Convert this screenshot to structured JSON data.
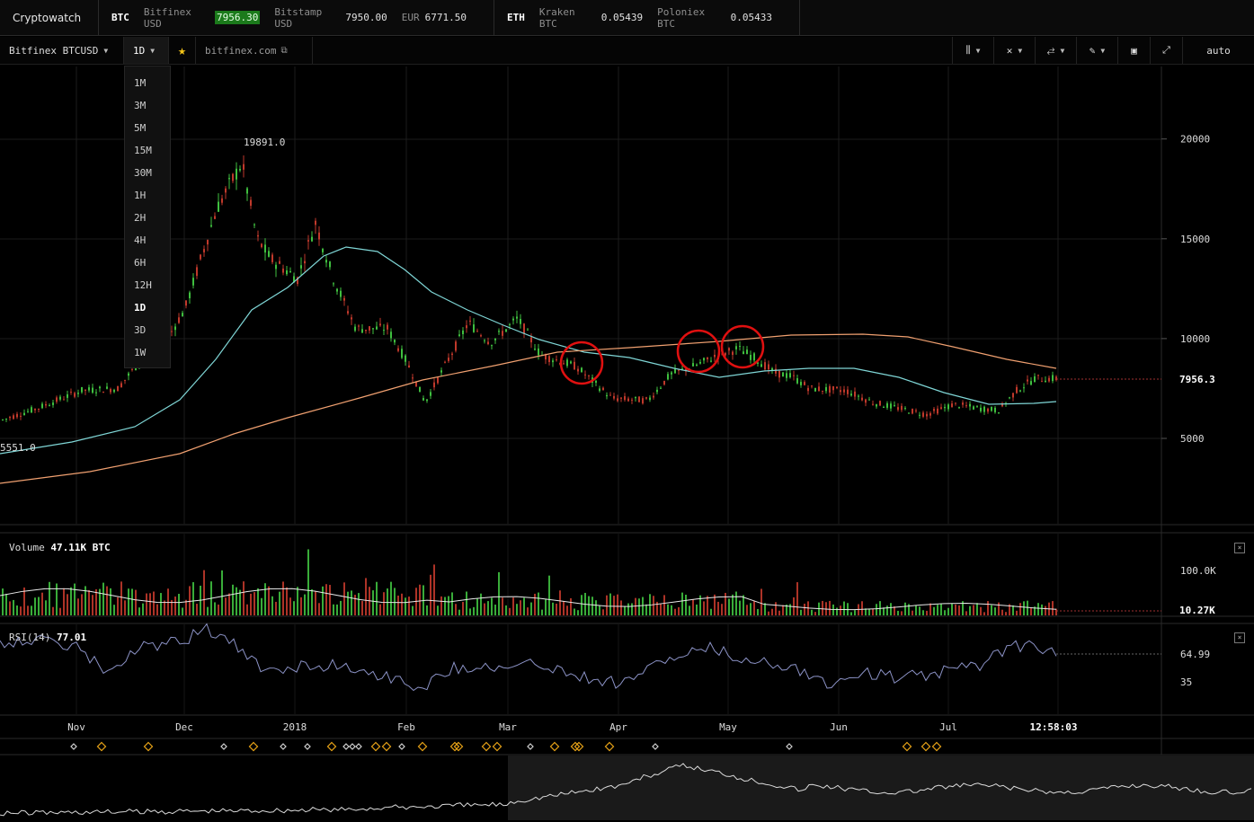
{
  "app": {
    "title": "Cryptowatch"
  },
  "ticker": {
    "btc": {
      "symbol": "BTC",
      "quotes": [
        {
          "label": "Bitfinex USD",
          "value": "7956.30"
        },
        {
          "label": "Bitstamp USD",
          "value": "7950.00"
        },
        {
          "label": "EUR",
          "value": "6771.50"
        }
      ]
    },
    "eth": {
      "symbol": "ETH",
      "quotes": [
        {
          "label": "Kraken BTC",
          "value": "0.05439"
        },
        {
          "label": "Poloniex BTC",
          "value": "0.05433"
        }
      ]
    }
  },
  "toolbar": {
    "market": "Bitfinex BTCUSD",
    "interval": "1D",
    "link": "bitfinex.com",
    "scale_mode": "auto",
    "icons": [
      "candle-type-icon",
      "crosshair-icon",
      "indicators-icon",
      "draw-pencil-icon",
      "screenshot-icon",
      "fullscreen-icon"
    ]
  },
  "interval_menu": {
    "options": [
      "1M",
      "3M",
      "5M",
      "15M",
      "30M",
      "1H",
      "2H",
      "4H",
      "6H",
      "12H",
      "1D",
      "3D",
      "1W"
    ],
    "selected": "1D"
  },
  "price_chart": {
    "y_ticks": [
      "20000",
      "15000",
      "10000",
      "5000"
    ],
    "last_price": "7956.3",
    "high_label": "19891.0",
    "low_label": "5551.0"
  },
  "volume_panel": {
    "label": "Volume",
    "value": "47.11K BTC",
    "y_ticks": [
      "100.0K",
      "10.27K"
    ]
  },
  "rsi_panel": {
    "label": "RSI(14)",
    "value": "77.01",
    "y_ticks": [
      "64.99",
      "35"
    ]
  },
  "time_axis": {
    "labels": [
      "Nov",
      "Dec",
      "2018",
      "Feb",
      "Mar",
      "Apr",
      "May",
      "Jun",
      "Jul"
    ],
    "current_time": "12:58:03"
  },
  "colors": {
    "up": "#3fbf3f",
    "down": "#c0392b",
    "sma_fast": "#7fd6d6",
    "sma_slow": "#f0a070",
    "highlight_circle": "#e01010",
    "event_marker": "#e8a317"
  }
}
